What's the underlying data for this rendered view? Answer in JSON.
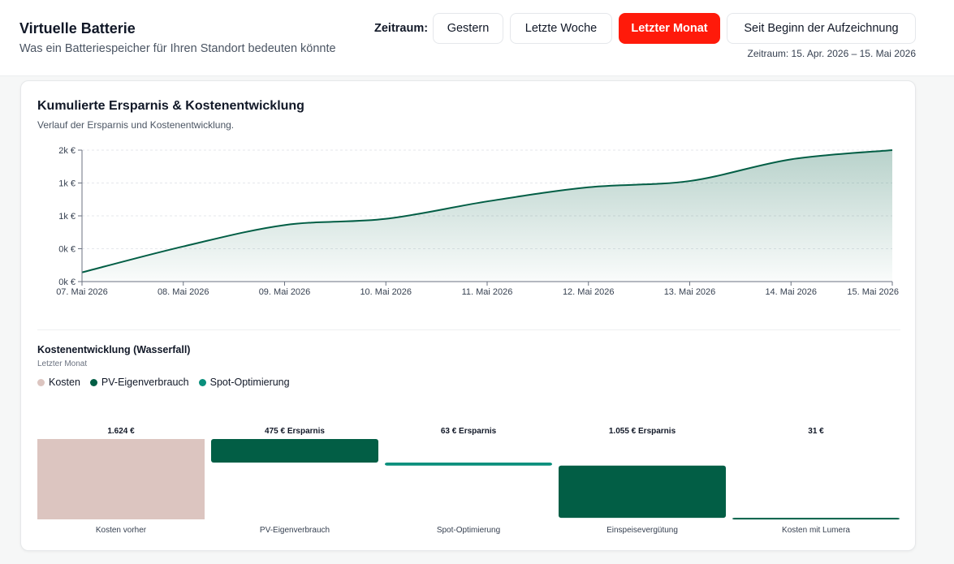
{
  "header": {
    "title": "Virtuelle Batterie",
    "subtitle": "Was ein Batteriespeicher für Ihren Standort bedeuten könnte",
    "period_label": "Zeitraum:",
    "buttons": [
      {
        "label": "Gestern",
        "active": false
      },
      {
        "label": "Letzte Woche",
        "active": false
      },
      {
        "label": "Letzter Monat",
        "active": true
      },
      {
        "label": "Seit Beginn der Aufzeichnung",
        "active": false
      }
    ],
    "range_text": "Zeitraum: 15. Apr. 2026 – 15. Mai 2026"
  },
  "colors": {
    "accent": "#ff1a0a",
    "dark_green": "#025e45",
    "teal": "#0a8f7c",
    "cost": "#dcc5c0"
  },
  "cumulative_chart": {
    "title": "Kumulierte Ersparnis & Kostenentwicklung",
    "subtitle": "Verlauf der Ersparnis und Kostenentwicklung."
  },
  "waterfall_chart": {
    "title": "Kostenentwicklung (Wasserfall)",
    "subtitle": "Letzter Monat",
    "legend": [
      {
        "label": "Kosten",
        "color": "#dcc5c0"
      },
      {
        "label": "PV-Eigenverbrauch",
        "color": "#025e45"
      },
      {
        "label": "Spot-Optimierung",
        "color": "#0a8f7c"
      }
    ]
  },
  "chart_data": [
    {
      "type": "area",
      "title": "Kumulierte Ersparnis & Kostenentwicklung",
      "subtitle": "Verlauf der Ersparnis und Kostenentwicklung.",
      "x": [
        "07. Mai 2026",
        "08. Mai 2026",
        "09. Mai 2026",
        "10. Mai 2026",
        "11. Mai 2026",
        "12. Mai 2026",
        "13. Mai 2026",
        "14. Mai 2026",
        "15. Mai 2026"
      ],
      "series": [
        {
          "values": [
            140,
            535,
            860,
            955,
            1220,
            1435,
            1530,
            1860,
            2000
          ],
          "color": "#025e45"
        }
      ],
      "yticks": [
        {
          "value": 0,
          "label": "0k €"
        },
        {
          "value": 500,
          "label": "0k €"
        },
        {
          "value": 1000,
          "label": "1k €"
        },
        {
          "value": 1500,
          "label": "1k €"
        },
        {
          "value": 2000,
          "label": "2k €"
        }
      ],
      "ylim": [
        0,
        2000
      ],
      "grid": true
    },
    {
      "type": "bar",
      "subtype": "waterfall",
      "title": "Kostenentwicklung (Wasserfall)",
      "subtitle": "Letzter Monat",
      "categories": [
        "Kosten vorher",
        "PV-Eigenverbrauch",
        "Spot-Optimierung",
        "Einspeisevergütung",
        "Kosten mit Lumera"
      ],
      "values": [
        1624,
        475,
        63,
        1055,
        31
      ],
      "labels": [
        "1.624 €",
        "475 € Ersparnis",
        "63 € Ersparnis",
        "1.055 € Ersparnis",
        "31 €"
      ],
      "kinds": [
        "cost",
        "saving",
        "saving",
        "saving",
        "cost"
      ],
      "colors": [
        "#dcc5c0",
        "#025e45",
        "#0a8f7c",
        "#025e45",
        "#025e45"
      ],
      "legend": [
        "Kosten",
        "PV-Eigenverbrauch",
        "Spot-Optimierung"
      ],
      "legend_position": "top-left"
    }
  ]
}
